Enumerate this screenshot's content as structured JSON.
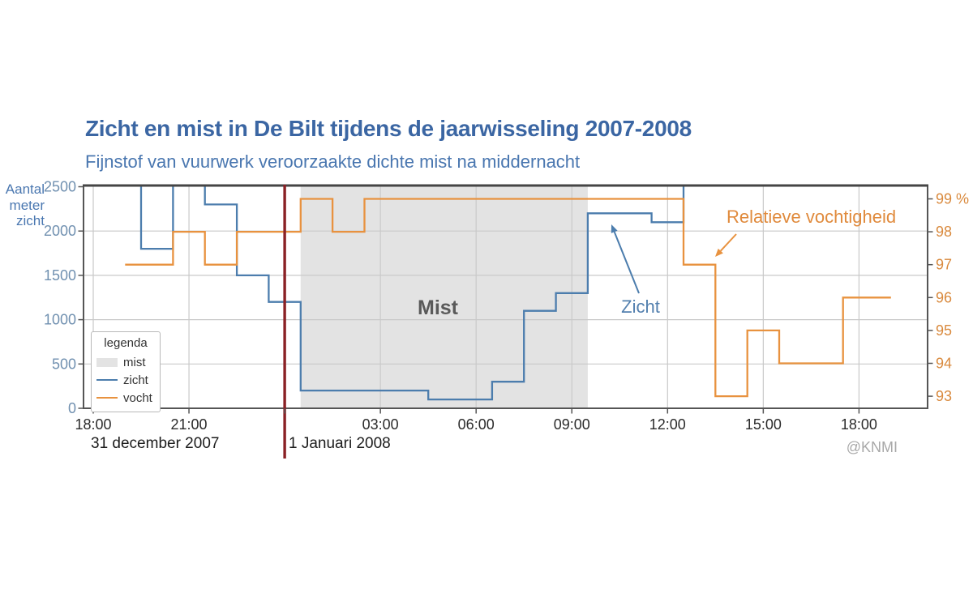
{
  "title": "Zicht en mist in De Bilt tijdens de jaarwisseling 2007-2008",
  "subtitle": "Fijnstof van vuurwerk veroorzaakte dichte mist na middernacht",
  "credit": "@KNMI",
  "left_axis": {
    "title_lines": [
      "Aantal",
      "meter",
      "zicht"
    ],
    "ticks": [
      0,
      500,
      1000,
      1500,
      2000,
      2500
    ]
  },
  "right_axis": {
    "unit": "%",
    "ticks": [
      {
        "value": 93,
        "label": "93"
      },
      {
        "value": 94,
        "label": "94"
      },
      {
        "value": 95,
        "label": "95"
      },
      {
        "value": 96,
        "label": "96"
      },
      {
        "value": 97,
        "label": "97"
      },
      {
        "value": 98,
        "label": "98"
      },
      {
        "value": 99,
        "label": "99 %"
      }
    ]
  },
  "x_axis": {
    "note": "t = uren sinds 18:00 op 31 december 2007",
    "ticks": [
      {
        "t": 0,
        "label": "18:00"
      },
      {
        "t": 3,
        "label": "21:00"
      },
      {
        "t": 6,
        "label": ""
      },
      {
        "t": 9,
        "label": "03:00"
      },
      {
        "t": 12,
        "label": "06:00"
      },
      {
        "t": 15,
        "label": "09:00"
      },
      {
        "t": 18,
        "label": "12:00"
      },
      {
        "t": 21,
        "label": "15:00"
      },
      {
        "t": 24,
        "label": "18:00"
      }
    ],
    "date_left": "31 december 2007",
    "date_right": "1 Januari 2008"
  },
  "legend": {
    "title": "legenda",
    "items": [
      {
        "label": "mist",
        "swatch": "area",
        "color_key": "mist_fill"
      },
      {
        "label": "zicht",
        "swatch": "line",
        "color_key": "zicht_line"
      },
      {
        "label": "vocht",
        "swatch": "line",
        "color_key": "vocht_line"
      }
    ]
  },
  "annotations": {
    "mist_label": "Mist",
    "zicht_label": "Zicht",
    "vocht_label": "Relatieve vochtigheid"
  },
  "colors": {
    "title": "#3b66a3",
    "subtitle": "#4a77b0",
    "axis_title": "#4a77b0",
    "left_ticks": "#7090b0",
    "right_ticks": "#d98a3e",
    "x_ticks": "#2b2b2b",
    "dates": "#1c1c1c",
    "credit": "#a8a8a8",
    "zicht_line": "#4c7dad",
    "vocht_line": "#e8923f",
    "mist_fill": "#e3e3e3",
    "mist_label": "#5a5a5a",
    "zicht_label": "#527fae",
    "vocht_label": "#e08a3c",
    "midnight_line": "#8a2125",
    "grid": "#c9c9c9",
    "border": "#555555",
    "border_top": "#454545"
  },
  "chart_data": {
    "type": "line",
    "style": "step",
    "title": "Zicht en mist in De Bilt tijdens de jaarwisseling 2007-2008",
    "x_unit": "t = uren sinds 18:00 op 31 december 2007 (0 = 18:00, 6 = 00:00, 25 = 19:00 op 1 januari)",
    "ylim_left_meters": [
      0,
      2500
    ],
    "ylim_right_percent": [
      92.6,
      99.4
    ],
    "grid": true,
    "midnight_line": {
      "t": 6,
      "time": "00:00"
    },
    "mist_region": {
      "from_t": 6.5,
      "to_t": 15.5,
      "from_time": "00:30",
      "to_time": "09:30"
    },
    "segment_format": [
      "from_t",
      "to_t",
      "value  (value holds constant over interval; '>2500' = boven schaal / clipped at top)"
    ],
    "series": [
      {
        "name": "zicht",
        "axis": "left",
        "unit": "meter",
        "segments": [
          [
            null,
            1.5,
            ">2500"
          ],
          [
            1.5,
            2.5,
            1800
          ],
          [
            2.5,
            3.5,
            ">2500"
          ],
          [
            3.5,
            4.5,
            2300
          ],
          [
            4.5,
            5.5,
            1500
          ],
          [
            5.5,
            6.5,
            1200
          ],
          [
            6.5,
            10.5,
            200
          ],
          [
            10.5,
            12.5,
            100
          ],
          [
            12.5,
            13.5,
            300
          ],
          [
            13.5,
            14.5,
            1100
          ],
          [
            14.5,
            15.5,
            1300
          ],
          [
            15.5,
            17.5,
            2200
          ],
          [
            17.5,
            18.5,
            2100
          ],
          [
            18.5,
            null,
            ">2500"
          ]
        ]
      },
      {
        "name": "vocht",
        "axis": "right",
        "unit": "%",
        "segments": [
          [
            1.0,
            2.5,
            97
          ],
          [
            2.5,
            3.5,
            98
          ],
          [
            3.5,
            4.5,
            97
          ],
          [
            4.5,
            6.5,
            98
          ],
          [
            6.5,
            7.5,
            99
          ],
          [
            7.5,
            8.5,
            98
          ],
          [
            8.5,
            18.5,
            99
          ],
          [
            18.5,
            19.5,
            97
          ],
          [
            19.5,
            20.5,
            93
          ],
          [
            20.5,
            21.5,
            95
          ],
          [
            21.5,
            23.5,
            94
          ],
          [
            23.5,
            25.0,
            96
          ]
        ]
      }
    ]
  }
}
